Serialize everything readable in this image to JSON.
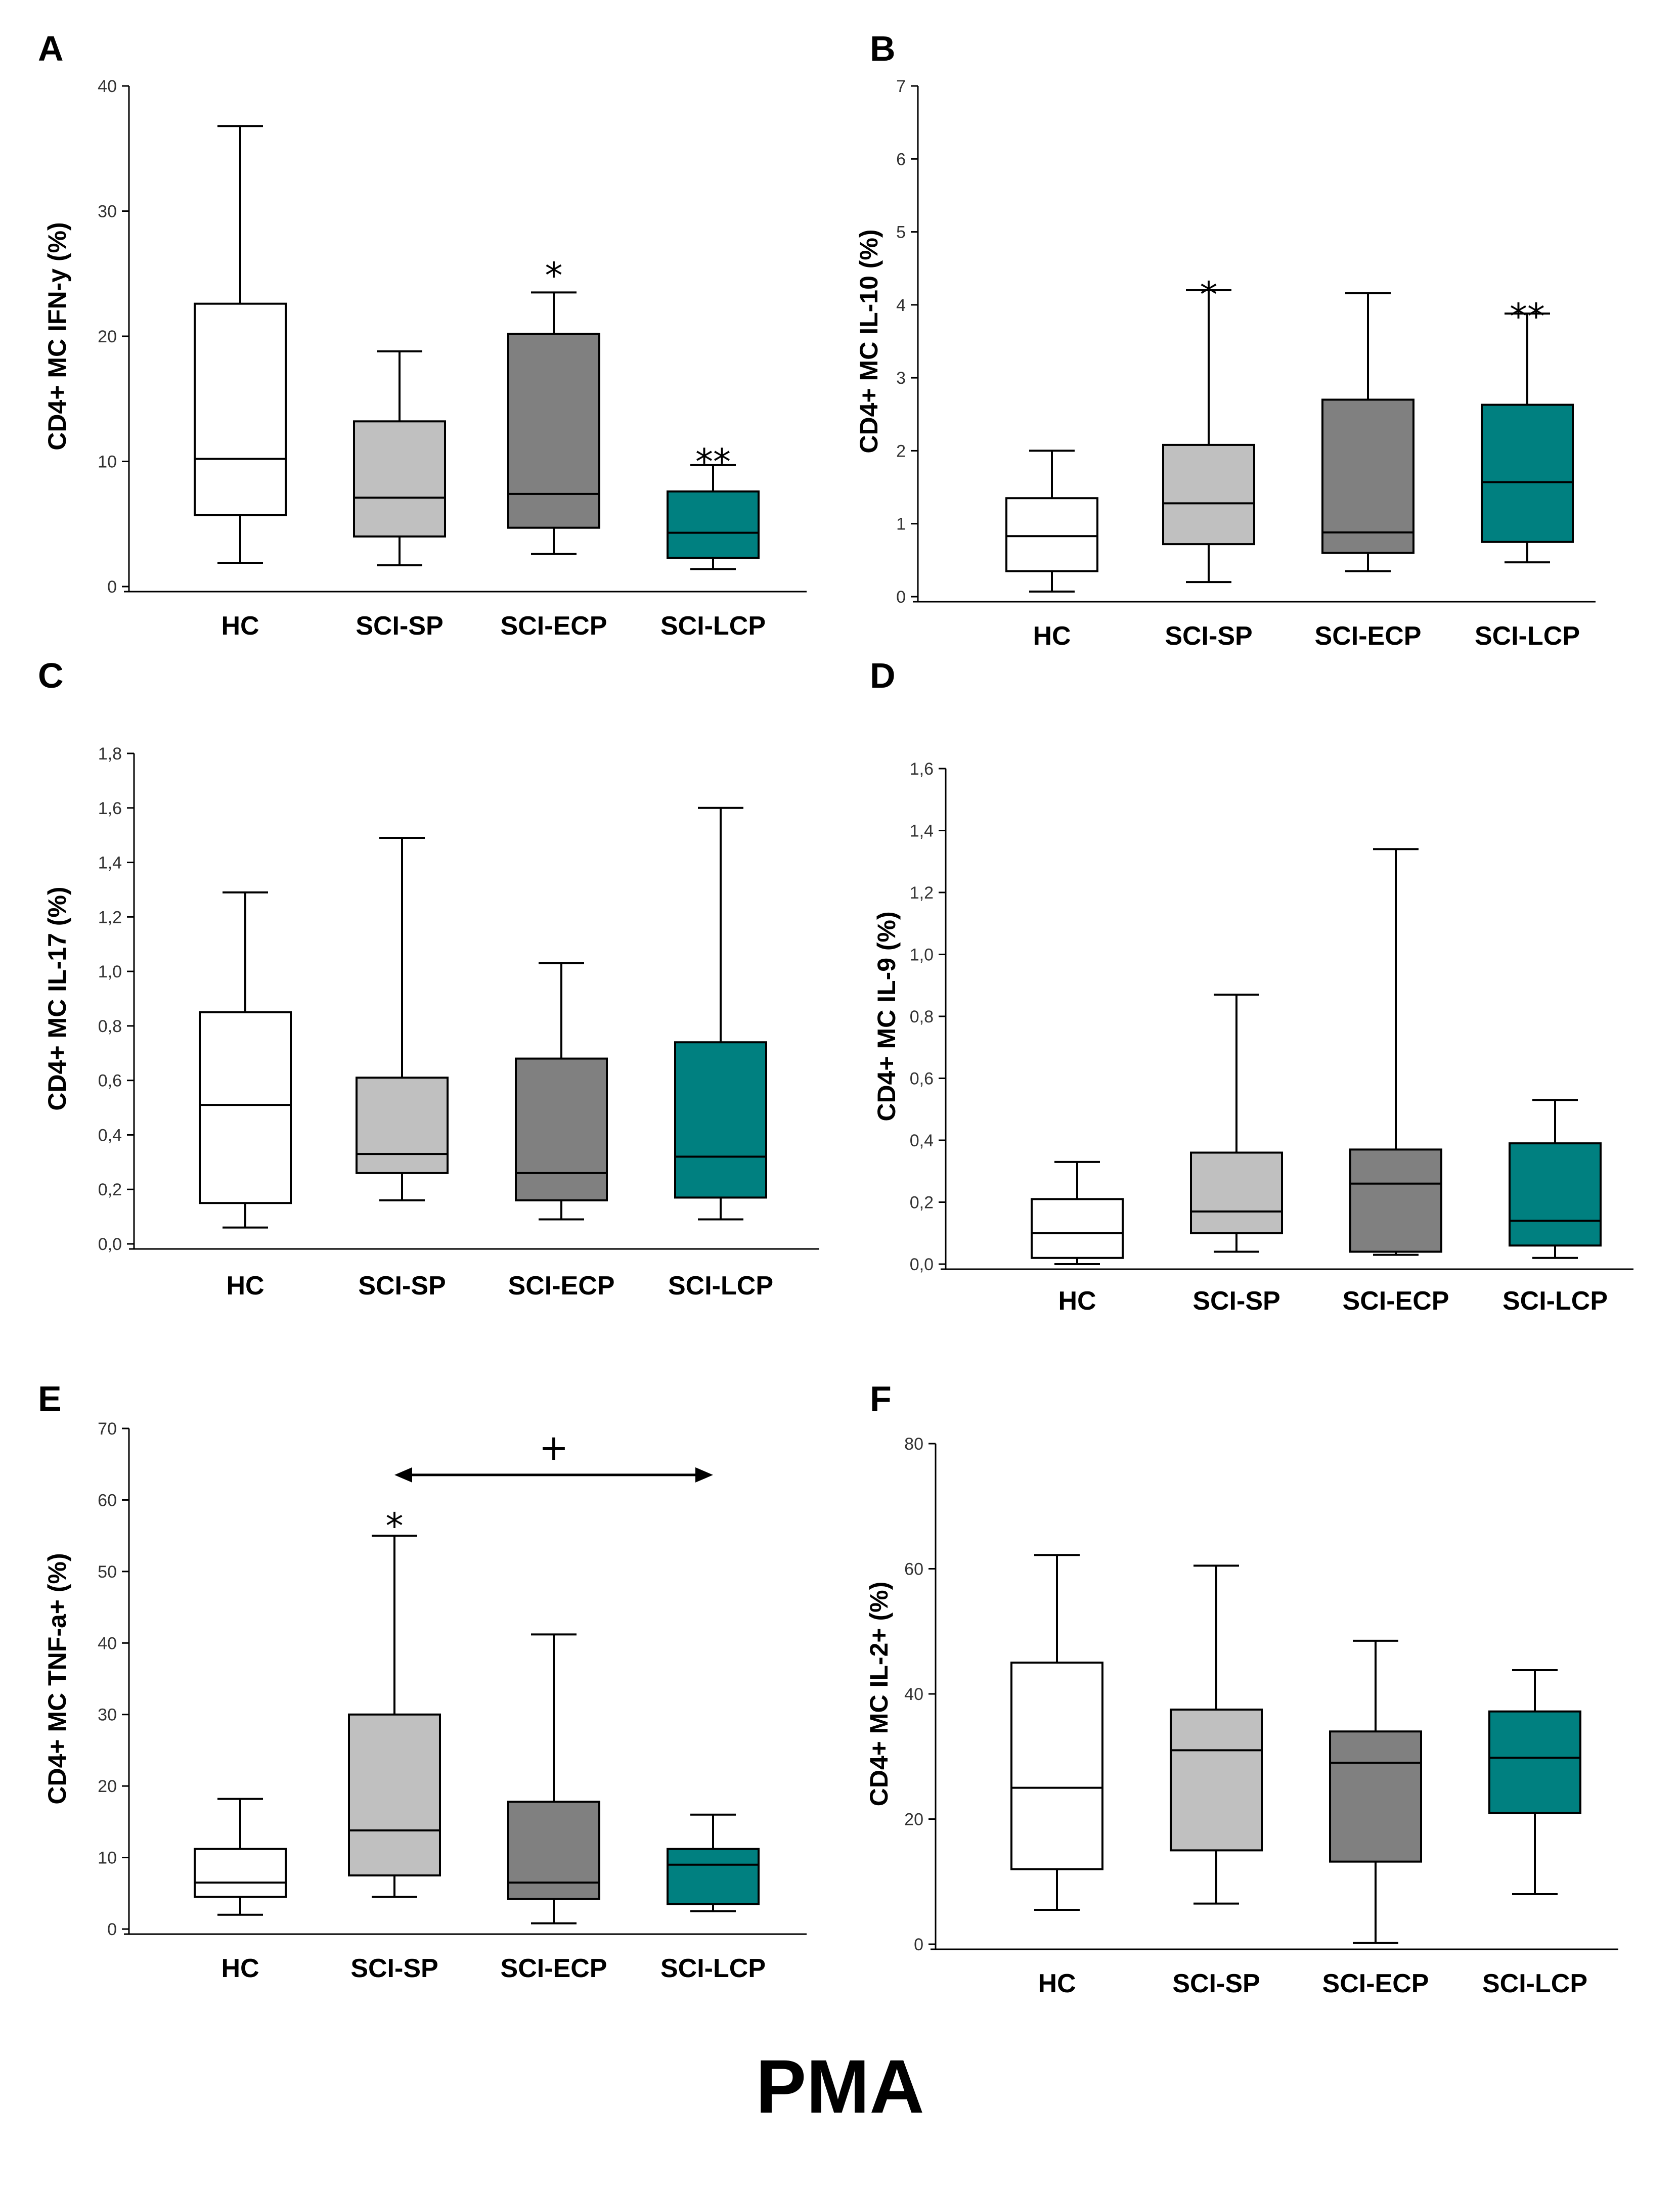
{
  "colors": {
    "HC": "#ffffff",
    "SCI-SP": "#c0c0c0",
    "SCI-ECP": "#808080",
    "SCI-LCP": "#008080"
  },
  "footer_label": "PMA",
  "chart_data": [
    {
      "panel": "A",
      "type": "box",
      "ylabel": "CD4+ MC IFN-y (%)",
      "ylim": [
        0,
        40
      ],
      "yticks": [
        "0",
        "10",
        "20",
        "30",
        "40"
      ],
      "categories": [
        "HC",
        "SCI-SP",
        "SCI-ECP",
        "SCI-LCP"
      ],
      "boxes": [
        {
          "min": 1.9,
          "q1": 5.7,
          "median": 10.2,
          "q3": 22.6,
          "max": 36.8
        },
        {
          "min": 1.7,
          "q1": 4.0,
          "median": 7.1,
          "q3": 13.2,
          "max": 18.8
        },
        {
          "min": 2.6,
          "q1": 4.7,
          "median": 7.4,
          "q3": 20.2,
          "max": 23.5
        },
        {
          "min": 1.4,
          "q1": 2.3,
          "median": 4.3,
          "q3": 7.6,
          "max": 9.7
        }
      ],
      "annotations": [
        {
          "category": "SCI-ECP",
          "text": "*",
          "y": 25.5
        },
        {
          "category": "SCI-LCP",
          "text": "**",
          "y": 10.6
        }
      ]
    },
    {
      "panel": "B",
      "type": "box",
      "ylabel": "CD4+ MC IL-10 (%)",
      "ylim": [
        0,
        7
      ],
      "yticks": [
        "0",
        "1",
        "2",
        "3",
        "4",
        "5",
        "6",
        "7"
      ],
      "categories": [
        "HC",
        "SCI-SP",
        "SCI-ECP",
        "SCI-LCP"
      ],
      "boxes": [
        {
          "min": 0.07,
          "q1": 0.35,
          "median": 0.83,
          "q3": 1.35,
          "max": 2.0
        },
        {
          "min": 0.2,
          "q1": 0.72,
          "median": 1.28,
          "q3": 2.08,
          "max": 4.2
        },
        {
          "min": 0.35,
          "q1": 0.6,
          "median": 0.88,
          "q3": 2.7,
          "max": 4.16
        },
        {
          "min": 0.47,
          "q1": 0.75,
          "median": 1.57,
          "q3": 2.63,
          "max": 3.88
        }
      ],
      "annotations": [
        {
          "category": "SCI-SP",
          "text": "*",
          "y": 4.25
        },
        {
          "category": "SCI-LCP",
          "text": "**",
          "y": 3.95
        }
      ]
    },
    {
      "panel": "C",
      "type": "box",
      "ylabel": "CD4+ MC IL-17 (%)",
      "ylim": [
        0,
        1.8
      ],
      "yticks": [
        "0,0",
        "0,2",
        "0,4",
        "0,6",
        "0,8",
        "1,0",
        "1,2",
        "1,4",
        "1,6",
        "1,8"
      ],
      "categories": [
        "HC",
        "SCI-SP",
        "SCI-ECP",
        "SCI-LCP"
      ],
      "boxes": [
        {
          "min": 0.06,
          "q1": 0.15,
          "median": 0.51,
          "q3": 0.85,
          "max": 1.29
        },
        {
          "min": 0.16,
          "q1": 0.26,
          "median": 0.33,
          "q3": 0.61,
          "max": 1.49
        },
        {
          "min": 0.09,
          "q1": 0.16,
          "median": 0.26,
          "q3": 0.68,
          "max": 1.03
        },
        {
          "min": 0.09,
          "q1": 0.17,
          "median": 0.32,
          "q3": 0.74,
          "max": 1.6
        }
      ],
      "annotations": []
    },
    {
      "panel": "D",
      "type": "box",
      "ylabel": "CD4+ MC IL-9 (%)",
      "ylim": [
        0,
        1.6
      ],
      "yticks": [
        "0,0",
        "0,2",
        "0,4",
        "0,6",
        "0,8",
        "1,0",
        "1,2",
        "1,4",
        "1,6"
      ],
      "categories": [
        "HC",
        "SCI-SP",
        "SCI-ECP",
        "SCI-LCP"
      ],
      "boxes": [
        {
          "min": 0.0,
          "q1": 0.02,
          "median": 0.1,
          "q3": 0.21,
          "max": 0.33
        },
        {
          "min": 0.04,
          "q1": 0.1,
          "median": 0.17,
          "q3": 0.36,
          "max": 0.87
        },
        {
          "min": 0.03,
          "q1": 0.04,
          "median": 0.26,
          "q3": 0.37,
          "max": 1.34
        },
        {
          "min": 0.02,
          "q1": 0.06,
          "median": 0.14,
          "q3": 0.39,
          "max": 0.53
        }
      ],
      "annotations": []
    },
    {
      "panel": "E",
      "type": "box",
      "ylabel": "CD4+ MC TNF-a+ (%)",
      "ylim": [
        0,
        70
      ],
      "yticks": [
        "0",
        "10",
        "20",
        "30",
        "40",
        "50",
        "60",
        "70"
      ],
      "categories": [
        "HC",
        "SCI-SP",
        "SCI-ECP",
        "SCI-LCP"
      ],
      "boxes": [
        {
          "min": 2.0,
          "q1": 4.5,
          "median": 6.5,
          "q3": 11.2,
          "max": 18.2
        },
        {
          "min": 4.5,
          "q1": 7.5,
          "median": 13.8,
          "q3": 30.0,
          "max": 55.0
        },
        {
          "min": 0.8,
          "q1": 4.2,
          "median": 6.5,
          "q3": 17.8,
          "max": 41.2
        },
        {
          "min": 2.5,
          "q1": 3.5,
          "median": 9.0,
          "q3": 11.2,
          "max": 16.0
        }
      ],
      "annotations": [
        {
          "category": "SCI-SP",
          "text": "*",
          "y": 57.5
        }
      ],
      "bracket": {
        "from": "SCI-SP",
        "to": "SCI-LCP",
        "text": "+",
        "y": 63.5
      }
    },
    {
      "panel": "F",
      "type": "box",
      "ylabel": "CD4+ MC IL-2+ (%)",
      "ylim": [
        0,
        80
      ],
      "yticks": [
        "0",
        "20",
        "40",
        "60",
        "80"
      ],
      "categories": [
        "HC",
        "SCI-SP",
        "SCI-ECP",
        "SCI-LCP"
      ],
      "boxes": [
        {
          "min": 5.5,
          "q1": 12.0,
          "median": 25.0,
          "q3": 45.0,
          "max": 62.2
        },
        {
          "min": 6.5,
          "q1": 15.0,
          "median": 31.0,
          "q3": 37.5,
          "max": 60.5
        },
        {
          "min": 0.2,
          "q1": 13.2,
          "median": 29.0,
          "q3": 34.0,
          "max": 48.5
        },
        {
          "min": 8.0,
          "q1": 21.0,
          "median": 29.8,
          "q3": 37.2,
          "max": 43.8
        }
      ],
      "annotations": []
    }
  ]
}
